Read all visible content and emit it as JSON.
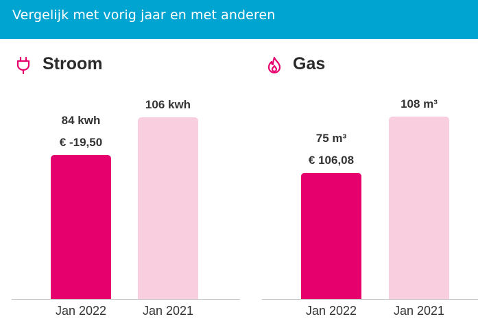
{
  "header": {
    "title": "Vergelijk met vorig jaar en met anderen"
  },
  "colors": {
    "header_bg": "#00a4d1",
    "accent": "#e5006d",
    "accent_light": "#f9cfe0"
  },
  "panels": {
    "stroom": {
      "title": "Stroom",
      "icon": "plug-icon",
      "chart_max": 120,
      "bars": [
        {
          "category": "Jan 2022",
          "value": 84,
          "value_label": "84 kwh",
          "cost_label": "€ -19,50"
        },
        {
          "category": "Jan 2021",
          "value": 106,
          "value_label": "106 kwh",
          "cost_label": ""
        }
      ]
    },
    "gas": {
      "title": "Gas",
      "icon": "flame-icon",
      "chart_max": 122,
      "bars": [
        {
          "category": "Jan 2022",
          "value": 75,
          "value_label": "75 m³",
          "cost_label": "€ 106,08"
        },
        {
          "category": "Jan 2021",
          "value": 108,
          "value_label": "108 m³",
          "cost_label": ""
        }
      ]
    }
  },
  "chart_data": [
    {
      "type": "bar",
      "title": "Stroom",
      "categories": [
        "Jan 2022",
        "Jan 2021"
      ],
      "values": [
        84,
        106
      ],
      "unit": "kwh",
      "annotations": [
        "€ -19,50",
        ""
      ],
      "xlabel": "",
      "ylabel": ""
    },
    {
      "type": "bar",
      "title": "Gas",
      "categories": [
        "Jan 2022",
        "Jan 2021"
      ],
      "values": [
        75,
        108
      ],
      "unit": "m³",
      "annotations": [
        "€ 106,08",
        ""
      ],
      "xlabel": "",
      "ylabel": ""
    }
  ]
}
